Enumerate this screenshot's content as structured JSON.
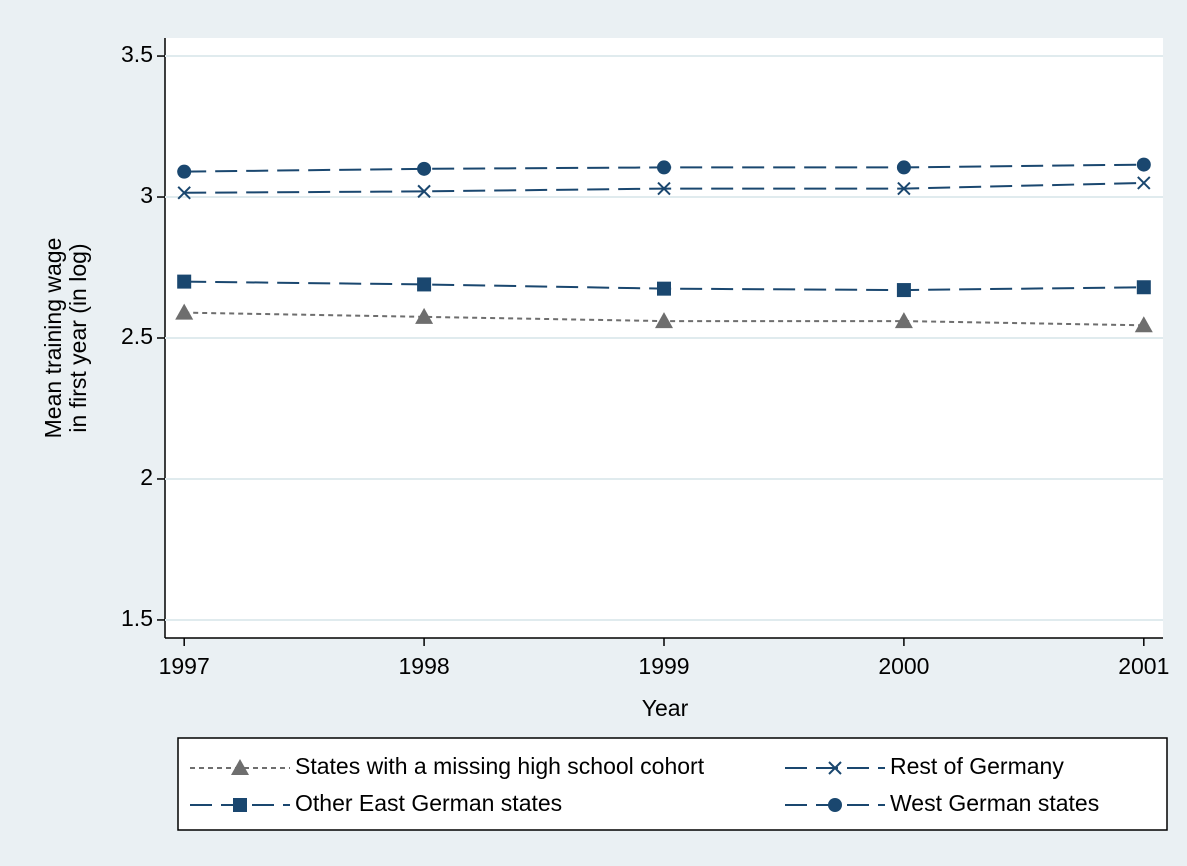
{
  "chart_data": {
    "type": "line",
    "ylabel": [
      "Mean training wage",
      "in first year (in log)"
    ],
    "xlabel": "Year",
    "x": [
      1997,
      1998,
      1999,
      2000,
      2001
    ],
    "xlim": [
      1996.92,
      2001.08
    ],
    "xticks": [
      1997,
      1998,
      1999,
      2000,
      2001
    ],
    "ylim": [
      1.436,
      3.564
    ],
    "yticks": [
      1.5,
      2,
      2.5,
      3,
      3.5
    ],
    "grid": true,
    "series": [
      {
        "name": "States with a missing high school cohort",
        "color": "#6e6e6e",
        "marker": "triangle",
        "line_style": "short-dash",
        "values": [
          2.59,
          2.575,
          2.56,
          2.56,
          2.545
        ]
      },
      {
        "name": "Rest of Germany",
        "color": "#1a476f",
        "marker": "x",
        "line_style": "long-dash",
        "values": [
          3.015,
          3.02,
          3.03,
          3.03,
          3.05
        ]
      },
      {
        "name": "Other East German states",
        "color": "#1a476f",
        "marker": "square",
        "line_style": "long-dash",
        "values": [
          2.7,
          2.69,
          2.675,
          2.67,
          2.68
        ]
      },
      {
        "name": "West German states",
        "color": "#1a476f",
        "marker": "circle",
        "line_style": "long-dash",
        "values": [
          3.09,
          3.1,
          3.105,
          3.105,
          3.115
        ]
      }
    ]
  }
}
